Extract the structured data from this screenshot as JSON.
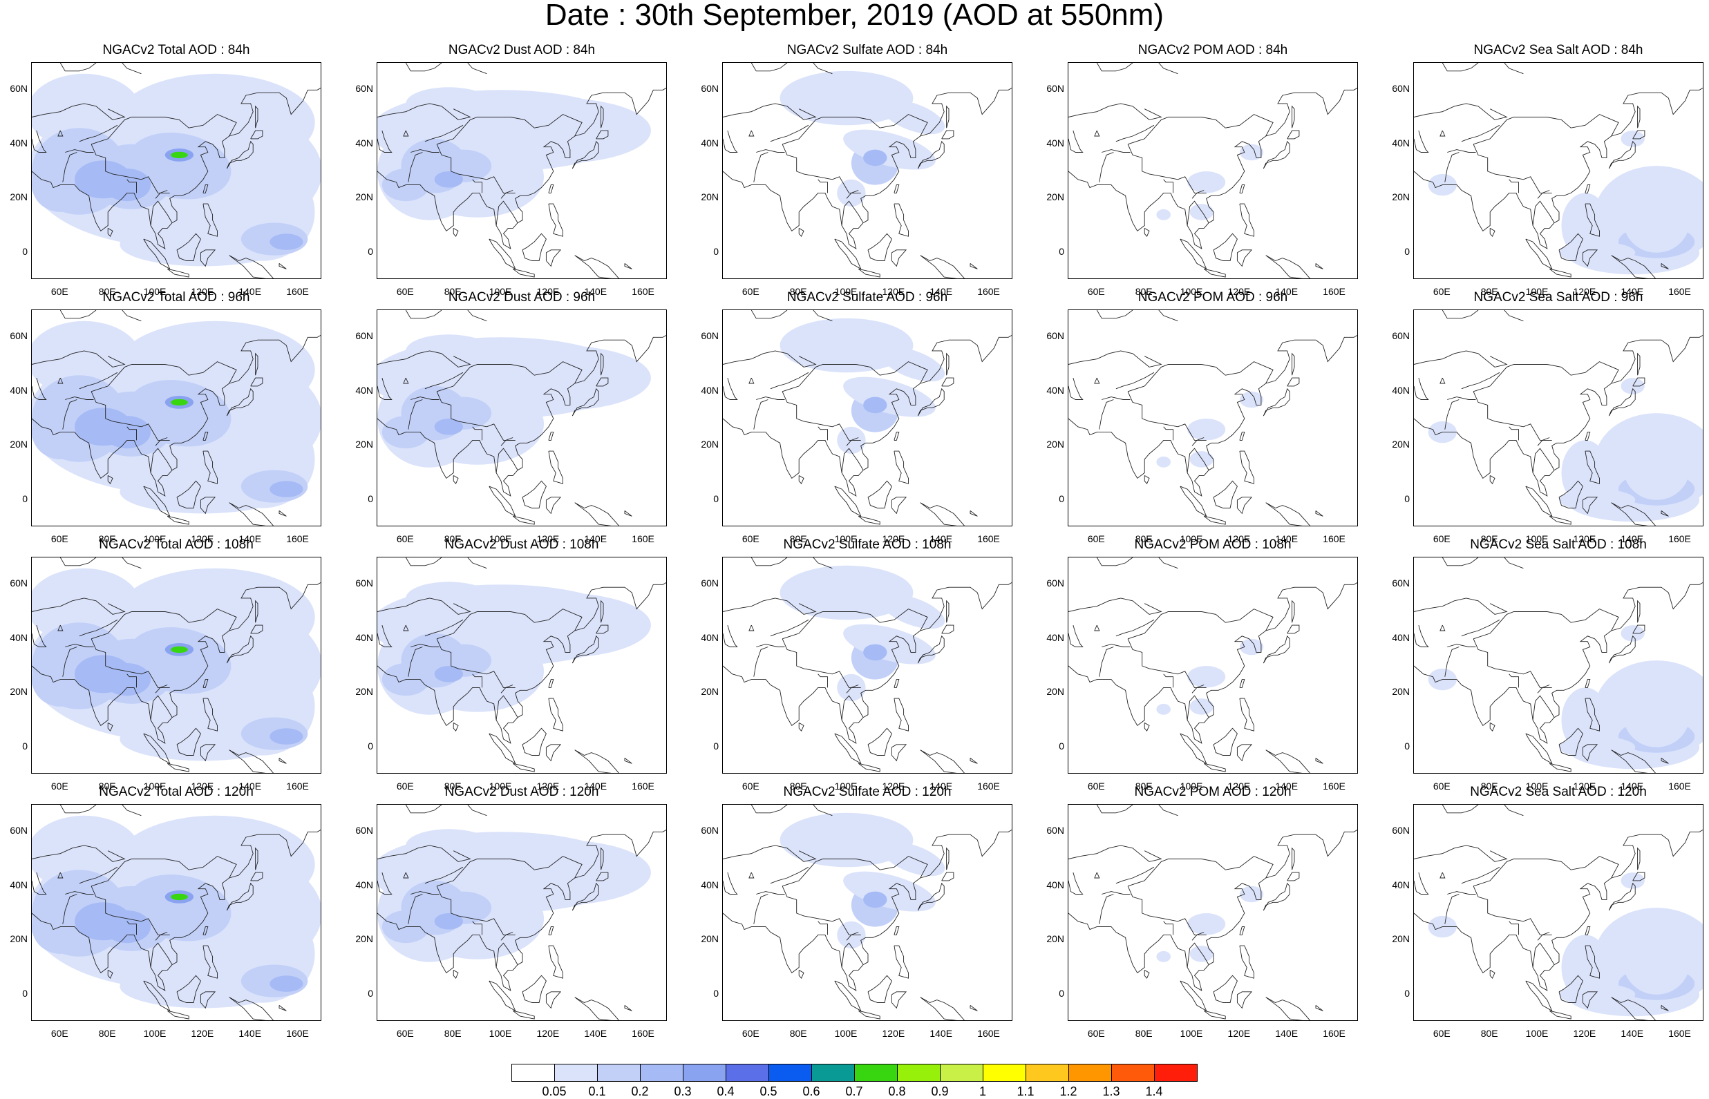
{
  "title": "Date : 30th September, 2019 (AOD at 550nm)",
  "lat_labels": [
    "60N",
    "40N",
    "20N",
    "0"
  ],
  "lon_labels": [
    "60E",
    "80E",
    "100E",
    "120E",
    "140E",
    "160E"
  ],
  "panels": [
    {
      "title": "NGACv2 Total AOD : 84h",
      "species": "total"
    },
    {
      "title": "NGACv2 Dust AOD : 84h",
      "species": "dust"
    },
    {
      "title": "NGACv2 Sulfate AOD : 84h",
      "species": "sulfate"
    },
    {
      "title": "NGACv2 POM AOD : 84h",
      "species": "pom"
    },
    {
      "title": "NGACv2 Sea Salt AOD : 84h",
      "species": "seasalt"
    },
    {
      "title": "NGACv2 Total AOD : 96h",
      "species": "total"
    },
    {
      "title": "NGACv2 Dust AOD : 96h",
      "species": "dust"
    },
    {
      "title": "NGACv2 Sulfate AOD : 96h",
      "species": "sulfate"
    },
    {
      "title": "NGACv2 POM AOD : 96h",
      "species": "pom"
    },
    {
      "title": "NGACv2 Sea Salt AOD : 96h",
      "species": "seasalt"
    },
    {
      "title": "NGACv2 Total AOD : 108h",
      "species": "total"
    },
    {
      "title": "NGACv2 Dust AOD : 108h",
      "species": "dust"
    },
    {
      "title": "NGACv2 Sulfate AOD : 108h",
      "species": "sulfate"
    },
    {
      "title": "NGACv2 POM AOD : 108h",
      "species": "pom"
    },
    {
      "title": "NGACv2 Sea Salt AOD : 108h",
      "species": "seasalt"
    },
    {
      "title": "NGACv2 Total AOD : 120h",
      "species": "total"
    },
    {
      "title": "NGACv2 Dust AOD : 120h",
      "species": "dust"
    },
    {
      "title": "NGACv2 Sulfate AOD : 120h",
      "species": "sulfate"
    },
    {
      "title": "NGACv2 POM AOD : 120h",
      "species": "pom"
    },
    {
      "title": "NGACv2 Sea Salt  AOD : 120h",
      "species": "seasalt"
    }
  ],
  "colorbar": {
    "labels": [
      "0.05",
      "0.1",
      "0.2",
      "0.3",
      "0.4",
      "0.5",
      "0.6",
      "0.7",
      "0.8",
      "0.9",
      "1",
      "1.1",
      "1.2",
      "1.3",
      "1.4"
    ],
    "colors": [
      "#ffffff",
      "#dbe3fb",
      "#c2d0f8",
      "#a6bbf5",
      "#8aa3f1",
      "#5a6fe8",
      "#0a5cf0",
      "#0a9a96",
      "#38d610",
      "#96f00a",
      "#c8f046",
      "#ffff00",
      "#ffc81e",
      "#ff9600",
      "#ff5a0a",
      "#ff1e0a"
    ]
  }
}
